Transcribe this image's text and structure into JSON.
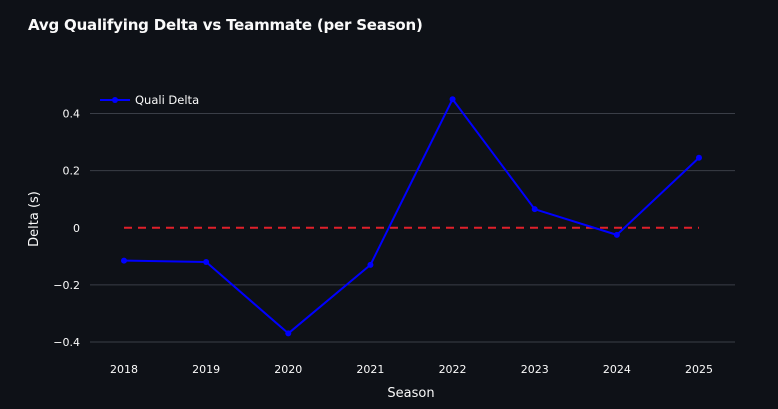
{
  "chart_data": {
    "type": "line",
    "title": "Avg Qualifying Delta vs Teammate (per Season)",
    "xlabel": "Season",
    "ylabel": "Delta (s)",
    "categories": [
      "2018",
      "2019",
      "2020",
      "2021",
      "2022",
      "2023",
      "2024",
      "2025"
    ],
    "series": [
      {
        "name": "Quali Delta",
        "values": [
          -0.115,
          -0.12,
          -0.37,
          -0.13,
          0.45,
          0.065,
          -0.025,
          0.245
        ],
        "color": "#0000ff"
      }
    ],
    "reference_line": {
      "y": 0,
      "style": "dashed",
      "color": "#e0202a"
    },
    "yticks": [
      0.4,
      0.2,
      0,
      -0.2,
      -0.4
    ],
    "ytick_labels": [
      "0.4",
      "0.2",
      "0",
      "−0.2",
      "−0.4"
    ],
    "ylim": [
      -0.4,
      0.4
    ],
    "grid": true,
    "legend_position": "top-left"
  },
  "colors": {
    "background": "#0e1117",
    "grid": "#3a3e47",
    "text": "#fafafa"
  }
}
